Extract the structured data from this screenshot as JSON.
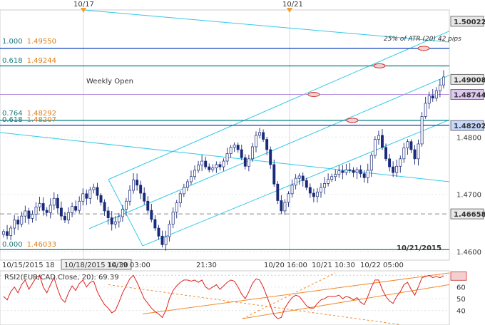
{
  "chart_data": [
    {
      "type": "candlestick",
      "symbol": "EUR/CAD",
      "ylim": [
        1.4585,
        1.5022
      ],
      "price_axis_labels": [
        "1.4600",
        "1.4700",
        "1.4800"
      ],
      "price_badges": [
        {
          "value": 1.50022,
          "label": "1.50022"
        },
        {
          "value": 1.49008,
          "label": "1.49008"
        },
        {
          "value": 1.48744,
          "label": "1.48744"
        },
        {
          "value": 1.48202,
          "label": "1.48202"
        },
        {
          "value": 1.46658,
          "label": "1.46658"
        }
      ],
      "fib_levels": [
        {
          "ratio": "1.000",
          "price": "1.49550",
          "value": 1.4955,
          "color": "#1f4fbf"
        },
        {
          "ratio": "0.618",
          "price": "1.49244",
          "value": 1.49244,
          "color": "#1a8a8a"
        },
        {
          "ratio": "0.764",
          "price": "1.48292",
          "value": 1.48292,
          "color": "#1a8a8a"
        },
        {
          "ratio": "0.618",
          "price": "1.48207",
          "value": 1.48207,
          "color": "#1f4fbf"
        },
        {
          "ratio": "0.000",
          "price": "1.46033",
          "value": 1.46033,
          "color": "#1a8a8a"
        }
      ],
      "annotations": {
        "weekly_open": "Weekly Open",
        "atr_note": "25% of ATR (20) 42 pips",
        "date_watermark": "10/21/2015",
        "top_markers": [
          "10/17",
          "10/21"
        ]
      },
      "time_axis_labels": [
        "10/15/2015 18",
        "10/18/2015 14:30",
        "10/19 03:00",
        "21:30",
        "10/20 16:00",
        "10/21 10:30",
        "10/22 05:00"
      ],
      "close_series": [
        1.4635,
        1.4628,
        1.4641,
        1.4655,
        1.4648,
        1.4662,
        1.4671,
        1.4658,
        1.4665,
        1.4678,
        1.4684,
        1.4672,
        1.4668,
        1.4681,
        1.4693,
        1.4676,
        1.4662,
        1.4655,
        1.4668,
        1.4679,
        1.4672,
        1.4688,
        1.4701,
        1.4693,
        1.4708,
        1.4712,
        1.4698,
        1.4686,
        1.4671,
        1.4659,
        1.4648,
        1.4652,
        1.4661,
        1.4674,
        1.4688,
        1.4707,
        1.4725,
        1.4716,
        1.4702,
        1.4688,
        1.4672,
        1.4656,
        1.4641,
        1.4627,
        1.4612,
        1.4626,
        1.4648,
        1.4669,
        1.4685,
        1.4701,
        1.4712,
        1.4722,
        1.4731,
        1.4742,
        1.4751,
        1.4758,
        1.4748,
        1.4743,
        1.4746,
        1.4752,
        1.4748,
        1.4758,
        1.4771,
        1.4782,
        1.4786,
        1.4778,
        1.4764,
        1.4749,
        1.4762,
        1.4783,
        1.4803,
        1.4808,
        1.4796,
        1.4778,
        1.4752,
        1.4718,
        1.4689,
        1.4671,
        1.4686,
        1.4701,
        1.4716,
        1.4728,
        1.4732,
        1.4724,
        1.4712,
        1.4702,
        1.4696,
        1.4704,
        1.4712,
        1.4719,
        1.4726,
        1.4731,
        1.4735,
        1.4741,
        1.4738,
        1.4743,
        1.4742,
        1.4738,
        1.4743,
        1.4736,
        1.4729,
        1.4742,
        1.4768,
        1.4796,
        1.4803,
        1.4782,
        1.4762,
        1.4748,
        1.4738,
        1.4749,
        1.4762,
        1.4781,
        1.4792,
        1.4778,
        1.4762,
        1.4788,
        1.4836,
        1.4859,
        1.4872,
        1.4868,
        1.4881,
        1.4891,
        1.4905
      ],
      "channels": [
        {
          "name": "",
          "points": [
            [
              0.0,
              1.4808
            ],
            [
              1.0,
              1.4722
            ]
          ],
          "color": "#33c8e8"
        }
      ]
    },
    {
      "type": "line",
      "indicator_label": "RSI2(EUR/CAD.Close, 20): 69.39",
      "ylim": [
        30,
        72
      ],
      "y_ticks": [
        40,
        50,
        60,
        70
      ],
      "value": 69.39,
      "values": [
        52,
        49,
        56,
        60,
        55,
        62,
        66,
        58,
        63,
        68,
        70,
        60,
        55,
        62,
        68,
        58,
        50,
        47,
        55,
        61,
        57,
        63,
        66,
        60,
        64,
        65,
        56,
        50,
        45,
        42,
        38,
        40,
        47,
        55,
        61,
        67,
        70,
        64,
        57,
        50,
        46,
        42,
        39,
        37,
        34,
        40,
        50,
        57,
        61,
        64,
        66,
        66,
        65,
        66,
        64,
        66,
        60,
        58,
        60,
        62,
        58,
        61,
        64,
        66,
        65,
        60,
        54,
        50,
        56,
        63,
        67,
        66,
        60,
        52,
        44,
        36,
        33,
        34,
        42,
        47,
        51,
        53,
        52,
        48,
        44,
        42,
        42,
        46,
        49,
        50,
        52,
        52,
        52,
        53,
        50,
        52,
        51,
        49,
        51,
        47,
        45,
        52,
        60,
        66,
        66,
        58,
        52,
        48,
        46,
        52,
        56,
        62,
        64,
        58,
        53,
        60,
        68,
        69,
        70,
        68,
        69,
        68,
        69.4
      ]
    }
  ]
}
